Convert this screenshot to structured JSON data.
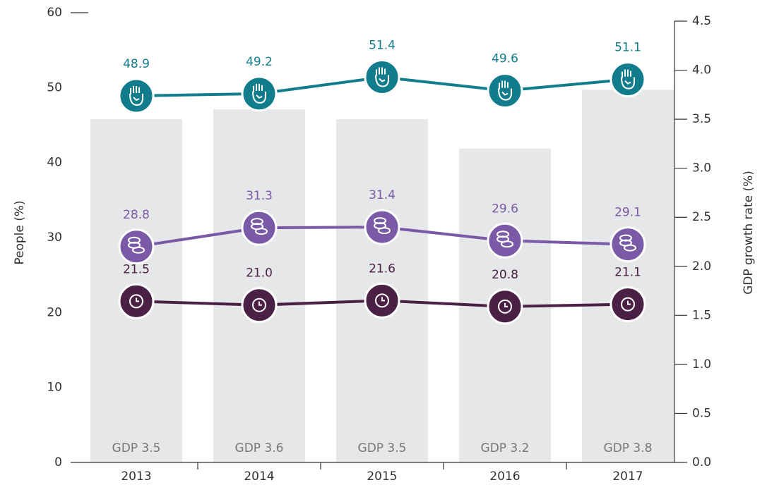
{
  "chart_data": {
    "type": "bar-line",
    "categories": [
      "2013",
      "2014",
      "2015",
      "2016",
      "2017"
    ],
    "ylabel": "People (%)",
    "y2label": "GDP growth rate (%)",
    "ylim": [
      0,
      60
    ],
    "yticks": [
      0,
      10,
      20,
      30,
      40,
      50,
      60
    ],
    "y2lim": [
      0,
      4.5
    ],
    "y2ticks": [
      {
        "value": 0,
        "label": "0.0"
      },
      0.5,
      {
        "value": 1,
        "label": "1.0"
      },
      1.5,
      {
        "value": 2,
        "label": "2.0"
      },
      2.5,
      {
        "value": 3,
        "label": "3.0"
      },
      3.5,
      {
        "value": 4,
        "label": "4.0"
      },
      4.5
    ],
    "bars": {
      "axis": "y2",
      "color": "#e6e7e8",
      "values": [
        3.5,
        3.6,
        3.5,
        3.2,
        3.8
      ],
      "value_labels": [
        "GDP 3.5",
        "GDP 3.6",
        "GDP 3.5",
        "GDP 3.2",
        "GDP 3.8"
      ]
    },
    "series": [
      {
        "color": "#117d8c",
        "values": [
          48.9,
          49.2,
          51.4,
          49.6,
          51.1
        ]
      },
      {
        "color": "#7a5aa6",
        "values": [
          28.8,
          31.3,
          31.4,
          29.6,
          29.1
        ]
      },
      {
        "color": "#4b2045",
        "values": [
          21.5,
          21.0,
          21.6,
          20.8,
          21.1
        ],
        "value_labels": [
          "21.5",
          "21.0",
          "21.6",
          "20.8",
          "21.1"
        ]
      }
    ]
  }
}
